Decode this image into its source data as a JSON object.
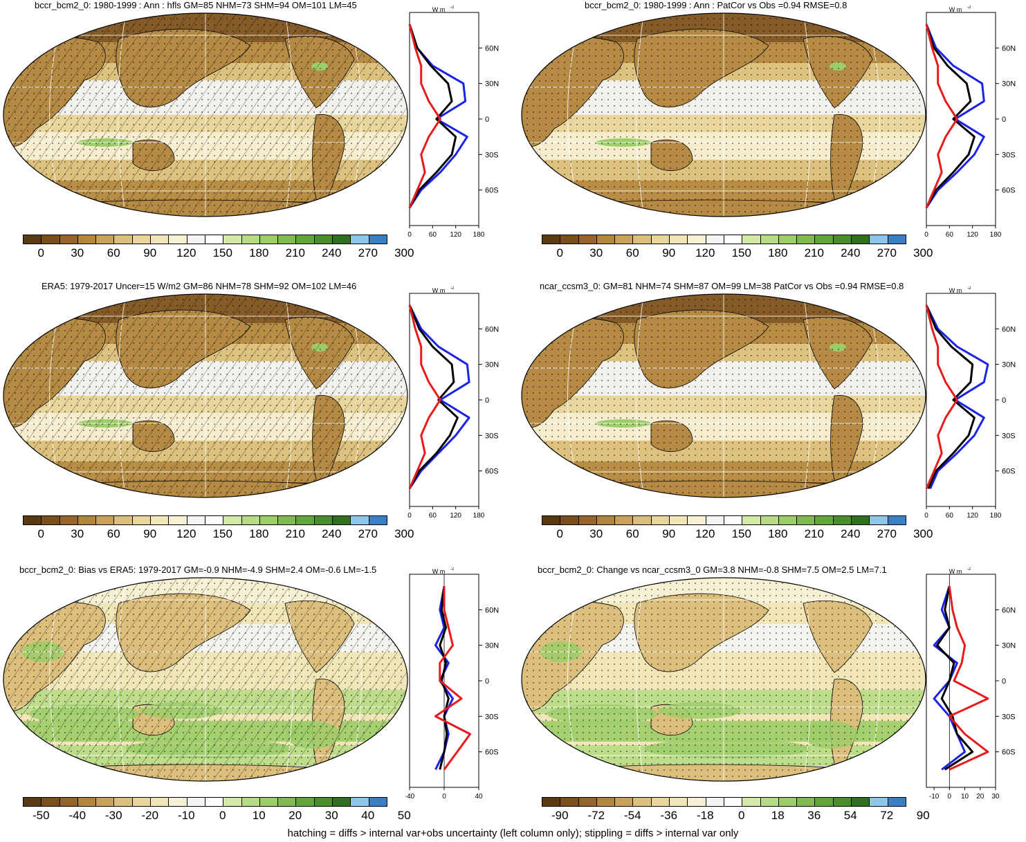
{
  "palette": [
    "#5a3a12",
    "#7a4f1c",
    "#94642a",
    "#b3863e",
    "#c9a25a",
    "#dcbf7c",
    "#e8d69c",
    "#f1e6b8",
    "#f6f0d4",
    "#f4f4f4",
    "#ffffff",
    "#d4e8a8",
    "#b8dc86",
    "#9ccd68",
    "#7fbb4e",
    "#62a53a",
    "#4a8e2c",
    "#2f6f1f",
    "#8fc5e8",
    "#3a7fc4"
  ],
  "colors": {
    "model": "#1a23e8",
    "obs": "#e81a1a",
    "diff": "#000000",
    "ocean_hi": "#f2ecc8",
    "land": "#b58a44"
  },
  "panels": [
    {
      "title": "bccr_bcm2_0: 1980-1999 : Ann : hfls GM=85 NHM=73 SHM=94 OM=101 LM=45",
      "cbar_ticks": [
        "0",
        "30",
        "60",
        "90",
        "120",
        "150",
        "180",
        "210",
        "240",
        "270",
        "300"
      ],
      "profile": {
        "units": "W m",
        "units_sup": "-2",
        "xticks": [
          "0",
          "60",
          "120",
          "180"
        ],
        "yticks": [
          "60N",
          "30N",
          "0",
          "30S",
          "60S"
        ]
      }
    },
    {
      "title": "bccr_bcm2_0: 1980-1999 : Ann : PatCor vs Obs =0.94 RMSE=0.8",
      "cbar_ticks": [
        "0",
        "30",
        "60",
        "90",
        "120",
        "150",
        "180",
        "210",
        "240",
        "270",
        "300"
      ],
      "profile": {
        "units": "W m",
        "units_sup": "-2",
        "xticks": [
          "0",
          "60",
          "120",
          "180"
        ],
        "yticks": [
          "60N",
          "30N",
          "0",
          "30S",
          "60S"
        ]
      }
    },
    {
      "title": "ERA5: 1979-2017 Uncer=15 W/m2 GM=86 NHM=78 SHM=92 OM=102 LM=46",
      "cbar_ticks": [
        "0",
        "30",
        "60",
        "90",
        "120",
        "150",
        "180",
        "210",
        "240",
        "270",
        "300"
      ],
      "profile": {
        "units": "W m",
        "units_sup": "-2",
        "xticks": [
          "0",
          "60",
          "120",
          "180"
        ],
        "yticks": [
          "60N",
          "30N",
          "0",
          "30S",
          "60S"
        ]
      }
    },
    {
      "title": "ncar_ccsm3_0: GM=81 NHM=74 SHM=87 OM=99 LM=38 PatCor vs Obs =0.94 RMSE=0.8",
      "cbar_ticks": [
        "0",
        "30",
        "60",
        "90",
        "120",
        "150",
        "180",
        "210",
        "240",
        "270",
        "300"
      ],
      "profile": {
        "units": "W m",
        "units_sup": "-2",
        "xticks": [
          "0",
          "60",
          "120",
          "180"
        ],
        "yticks": [
          "60N",
          "30N",
          "0",
          "30S",
          "60S"
        ]
      }
    },
    {
      "title": "bccr_bcm2_0: Bias vs ERA5: 1979-2017 GM=-0.9 NHM=-4.9 SHM=2.4 OM=-0.6 LM=-1.5",
      "cbar_ticks": [
        "-50",
        "-40",
        "-30",
        "-20",
        "-10",
        "0",
        "10",
        "20",
        "30",
        "40",
        "50"
      ],
      "profile": {
        "units": "W m",
        "units_sup": "-2",
        "xticks": [
          "-40",
          "0",
          "40"
        ],
        "yticks": [
          "60N",
          "30N",
          "0",
          "30S",
          "60S"
        ]
      }
    },
    {
      "title": "bccr_bcm2_0: Change vs ncar_ccsm3_0 GM=3.8 NHM=-0.8 SHM=7.5 OM=2.5 LM=7.1",
      "cbar_ticks": [
        "-90",
        "-72",
        "-54",
        "-36",
        "-18",
        "0",
        "18",
        "36",
        "54",
        "72",
        "90"
      ],
      "profile": {
        "units": "W m",
        "units_sup": "-2",
        "xticks": [
          "-10",
          "0",
          "10",
          "20",
          "30"
        ],
        "yticks": [
          "60N",
          "30N",
          "0",
          "30S",
          "60S"
        ]
      }
    }
  ],
  "footer": "hatching = diffs > internal var+obs uncertainty (left column only); stippling = diffs > internal var only",
  "chart_data": [
    {
      "type": "line",
      "panel": 1,
      "xlim": [
        0,
        180
      ],
      "xlabel": "W m-2",
      "y": [
        80,
        60,
        45,
        30,
        15,
        0,
        -15,
        -30,
        -45,
        -60,
        -75
      ],
      "series": [
        {
          "color": "blue",
          "values": [
            0,
            20,
            60,
            140,
            145,
            70,
            150,
            120,
            80,
            30,
            0
          ]
        },
        {
          "color": "black",
          "values": [
            0,
            20,
            55,
            100,
            110,
            70,
            120,
            110,
            70,
            25,
            0
          ]
        },
        {
          "color": "red",
          "values": [
            0,
            15,
            30,
            30,
            50,
            80,
            50,
            30,
            40,
            20,
            0
          ]
        }
      ]
    },
    {
      "type": "line",
      "panel": 2,
      "xlim": [
        0,
        180
      ],
      "xlabel": "W m-2",
      "y": [
        80,
        60,
        45,
        30,
        15,
        0,
        -15,
        -30,
        -45,
        -60,
        -75
      ],
      "series": [
        {
          "color": "blue",
          "values": [
            0,
            25,
            70,
            145,
            150,
            75,
            150,
            125,
            80,
            30,
            0
          ]
        },
        {
          "color": "black",
          "values": [
            0,
            20,
            55,
            105,
            115,
            70,
            125,
            110,
            70,
            25,
            0
          ]
        },
        {
          "color": "red",
          "values": [
            0,
            15,
            30,
            30,
            50,
            80,
            50,
            30,
            40,
            20,
            0
          ]
        }
      ]
    },
    {
      "type": "line",
      "panel": 3,
      "xlim": [
        0,
        180
      ],
      "xlabel": "W m-2",
      "y": [
        80,
        60,
        45,
        30,
        15,
        0,
        -15,
        -30,
        -45,
        -60,
        -75
      ],
      "series": [
        {
          "color": "blue",
          "values": [
            0,
            30,
            75,
            150,
            155,
            80,
            155,
            120,
            75,
            30,
            0
          ]
        },
        {
          "color": "black",
          "values": [
            0,
            25,
            60,
            110,
            115,
            75,
            125,
            105,
            70,
            25,
            0
          ]
        },
        {
          "color": "red",
          "values": [
            0,
            15,
            30,
            30,
            50,
            80,
            50,
            30,
            40,
            20,
            0
          ]
        }
      ]
    },
    {
      "type": "line",
      "panel": 4,
      "xlim": [
        0,
        180
      ],
      "xlabel": "W m-2",
      "y": [
        80,
        60,
        45,
        30,
        15,
        0,
        -15,
        -30,
        -45,
        -60,
        -75
      ],
      "series": [
        {
          "color": "blue",
          "values": [
            0,
            30,
            80,
            160,
            150,
            75,
            150,
            125,
            80,
            30,
            10
          ]
        },
        {
          "color": "black",
          "values": [
            0,
            25,
            65,
            120,
            115,
            70,
            125,
            110,
            70,
            25,
            5
          ]
        },
        {
          "color": "red",
          "values": [
            0,
            15,
            30,
            30,
            50,
            80,
            50,
            30,
            40,
            20,
            0
          ]
        }
      ]
    },
    {
      "type": "line",
      "panel": 5,
      "xlim": [
        -40,
        40
      ],
      "xlabel": "W m-2",
      "y": [
        80,
        60,
        45,
        30,
        15,
        0,
        -15,
        -30,
        -45,
        -60,
        -75
      ],
      "series": [
        {
          "color": "blue",
          "values": [
            0,
            -5,
            0,
            -10,
            5,
            -5,
            10,
            0,
            5,
            0,
            -10
          ]
        },
        {
          "color": "black",
          "values": [
            0,
            -3,
            2,
            -5,
            2,
            -3,
            5,
            0,
            3,
            0,
            -5
          ]
        },
        {
          "color": "red",
          "values": [
            0,
            0,
            5,
            10,
            -5,
            -5,
            20,
            -10,
            30,
            15,
            0
          ]
        }
      ]
    },
    {
      "type": "line",
      "panel": 6,
      "xlim": [
        -15,
        30
      ],
      "xlabel": "W m-2",
      "y": [
        80,
        60,
        45,
        30,
        15,
        0,
        -15,
        -30,
        -45,
        -60,
        -75
      ],
      "series": [
        {
          "color": "blue",
          "values": [
            0,
            -5,
            0,
            -10,
            5,
            0,
            -10,
            0,
            5,
            10,
            -5
          ]
        },
        {
          "color": "black",
          "values": [
            0,
            -3,
            0,
            -8,
            3,
            0,
            -5,
            2,
            5,
            15,
            -3
          ]
        },
        {
          "color": "red",
          "values": [
            0,
            2,
            5,
            10,
            8,
            3,
            25,
            0,
            10,
            25,
            0
          ]
        }
      ]
    }
  ]
}
